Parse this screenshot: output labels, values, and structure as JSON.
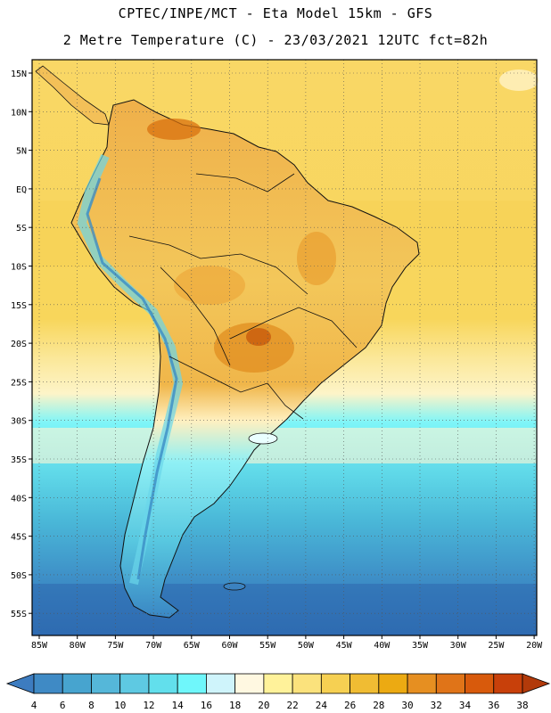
{
  "header": {
    "line1": "CPTEC/INPE/MCT -  Eta Model 15km - GFS",
    "line2": "2 Metre Temperature (C) - 23/03/2021 12UTC fct=82h"
  },
  "axes": {
    "lat_labels": [
      "15N",
      "10N",
      "5N",
      "EQ",
      "5S",
      "10S",
      "15S",
      "20S",
      "25S",
      "30S",
      "35S",
      "40S",
      "45S",
      "50S",
      "55S"
    ],
    "lon_labels": [
      "85W",
      "80W",
      "75W",
      "70W",
      "65W",
      "60W",
      "55W",
      "50W",
      "45W",
      "40W",
      "35W",
      "30W",
      "25W",
      "20W"
    ]
  },
  "colorbar": {
    "labels": [
      "4",
      "6",
      "8",
      "10",
      "12",
      "14",
      "16",
      "18",
      "20",
      "22",
      "24",
      "26",
      "28",
      "30",
      "32",
      "34",
      "36",
      "38"
    ],
    "colors": [
      "#3d7cc0",
      "#3f8ac5",
      "#47a4cf",
      "#55b7d9",
      "#5ec9e2",
      "#62dfec",
      "#6ff7fb",
      "#cff4fb",
      "#fff8e1",
      "#fff29a",
      "#fbe27c",
      "#f6d052",
      "#f0bc33",
      "#ecaa12",
      "#e68f21",
      "#e07418",
      "#d85a0c",
      "#c8400a",
      "#b23a0a"
    ]
  }
}
